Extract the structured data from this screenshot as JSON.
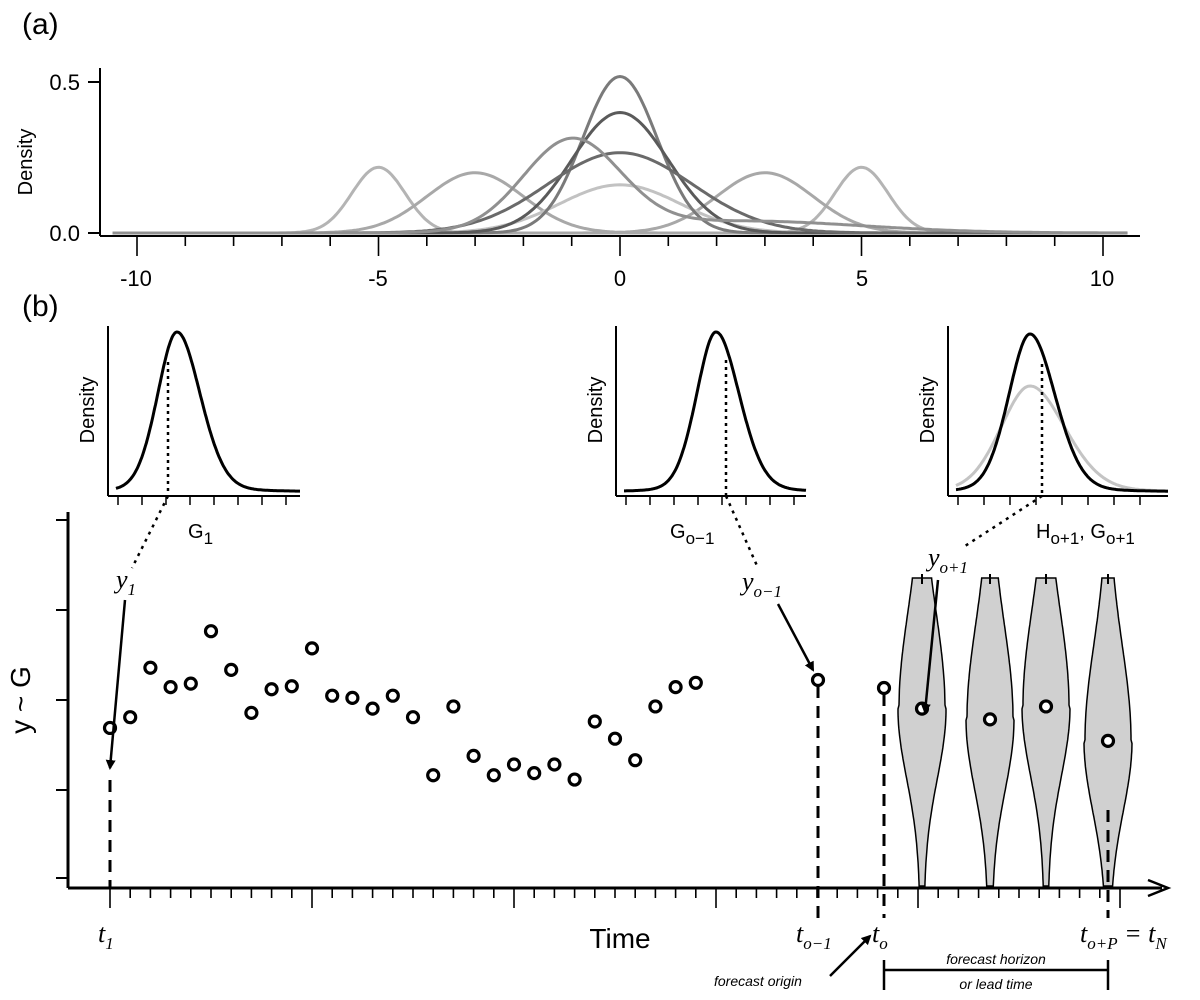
{
  "panel_a": {
    "label": "(a)",
    "ylabel": "Density",
    "y_ticks": [
      "0.0",
      "0.5"
    ],
    "x_ticks": [
      "-10",
      "-5",
      "0",
      "5",
      "10"
    ],
    "chart_data": {
      "type": "line",
      "xlim": [
        -10.5,
        10.5
      ],
      "ylim": [
        0,
        0.55
      ],
      "series": [
        {
          "mean": -5,
          "sd": 0.55,
          "weight": 0.3,
          "color": "#b4b4b4"
        },
        {
          "mean": 5,
          "sd": 0.55,
          "weight": 0.3,
          "color": "#b4b4b4"
        },
        {
          "mean": -3,
          "sd": 1.0,
          "weight": 0.5,
          "color": "#a8a8a8"
        },
        {
          "mean": 3,
          "sd": 1.0,
          "weight": 0.5,
          "color": "#a8a8a8"
        },
        {
          "mean": 0,
          "sd": 1.25,
          "weight": 0.5,
          "color": "#c2c2c2"
        },
        {
          "mean": 0,
          "sd": 0.77,
          "weight": 1.0,
          "color": "#7a7a7a"
        },
        {
          "mean": 0,
          "sd": 1.0,
          "weight": 1.0,
          "color": "#5a5a5a"
        },
        {
          "mean": 0,
          "sd": 1.5,
          "weight": 1.0,
          "color": "#6a6a6a"
        },
        {
          "mean": -1,
          "sd": 1.0,
          "weight": 0.75,
          "color": "#909090",
          "tail_mean": 2.5,
          "tail_sd": 2.5,
          "tail_weight": 0.25
        }
      ]
    }
  },
  "panel_b": {
    "label": "(b)",
    "inset_ylabel": "Density",
    "insets": [
      {
        "name": "G",
        "sub": "1"
      },
      {
        "name": "G",
        "sub": "o−1"
      },
      {
        "name": "H",
        "sub": "o+1",
        "name2": "G",
        "sub2": "o+1"
      }
    ],
    "ylabel": "y ~ G",
    "xlabel": "Time",
    "obs_labels": [
      {
        "name": "y",
        "sub": "1"
      },
      {
        "name": "y",
        "sub": "o−1"
      },
      {
        "name": "y",
        "sub": "o+1"
      }
    ],
    "time_labels": [
      {
        "name": "t",
        "sub": "1"
      },
      {
        "name": "t",
        "sub": "o−1"
      },
      {
        "name": "t",
        "sub": "o"
      },
      {
        "name": "t",
        "sub": "o+P",
        "suffix": " = t",
        "suffix_sub": "N"
      }
    ],
    "forecast_origin": "forecast origin",
    "forecast_horizon_line1": "forecast horizon",
    "forecast_horizon_line2": "or lead time",
    "chart_data": {
      "type": "scatter",
      "points": [
        [
          1,
          -0.65
        ],
        [
          2,
          -0.4
        ],
        [
          3,
          0.75
        ],
        [
          4,
          0.3
        ],
        [
          5,
          0.38
        ],
        [
          6,
          1.6
        ],
        [
          7,
          0.7
        ],
        [
          8,
          -0.3
        ],
        [
          9,
          0.25
        ],
        [
          10,
          0.32
        ],
        [
          11,
          1.2
        ],
        [
          12,
          0.1
        ],
        [
          13,
          0.05
        ],
        [
          14,
          -0.2
        ],
        [
          15,
          0.1
        ],
        [
          16,
          -0.4
        ],
        [
          17,
          -1.75
        ],
        [
          18,
          -0.15
        ],
        [
          19,
          -1.3
        ],
        [
          20,
          -1.75
        ],
        [
          21,
          -1.5
        ],
        [
          22,
          -1.7
        ],
        [
          23,
          -1.5
        ],
        [
          24,
          -1.85
        ],
        [
          25,
          -0.5
        ],
        [
          26,
          -0.9
        ],
        [
          27,
          -1.4
        ],
        [
          28,
          -0.15
        ],
        [
          29,
          0.3
        ],
        [
          30,
          0.4
        ]
      ],
      "forecast_medians": [
        -0.2,
        -0.45,
        -0.15,
        -0.95
      ]
    }
  }
}
